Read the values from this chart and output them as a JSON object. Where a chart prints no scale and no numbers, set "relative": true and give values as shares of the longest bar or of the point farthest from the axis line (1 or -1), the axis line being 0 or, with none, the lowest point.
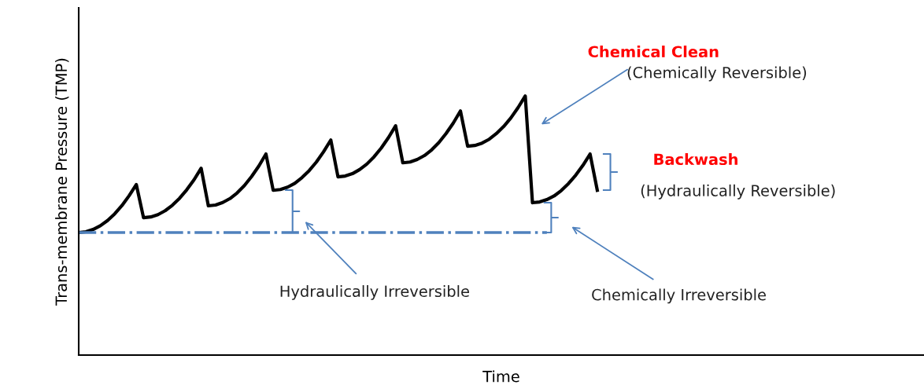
{
  "chart_data": {
    "type": "line",
    "relative": true,
    "xlabel": "Time",
    "ylabel": "Trans-membrane Pressure (TMP)",
    "categories": [
      null,
      null,
      null,
      null,
      null,
      null,
      null,
      null,
      null,
      null,
      null,
      null,
      null,
      null,
      null,
      null,
      null,
      null,
      null,
      null,
      null,
      null,
      null,
      null,
      null,
      null,
      null,
      null,
      null,
      null,
      null,
      null,
      null,
      null,
      null,
      null,
      null,
      null,
      null,
      null,
      null,
      null,
      null,
      null,
      null,
      null,
      null,
      null,
      null,
      null,
      null,
      null,
      null,
      null,
      null,
      null,
      null,
      null,
      null,
      null,
      null,
      null,
      null,
      null,
      null,
      null,
      null,
      null,
      null,
      null,
      null,
      null,
      null
    ],
    "series": [
      {
        "color": "#000000",
        "line_style": "solid",
        "values": [
          0.473,
          0.476,
          0.485,
          0.499,
          0.519,
          0.545,
          0.577,
          0.615,
          0.658,
          0.53,
          0.533,
          0.542,
          0.557,
          0.578,
          0.605,
          0.638,
          0.676,
          0.721,
          0.576,
          0.579,
          0.589,
          0.604,
          0.626,
          0.654,
          0.689,
          0.729,
          0.776,
          0.636,
          0.639,
          0.648,
          0.663,
          0.685,
          0.712,
          0.745,
          0.785,
          0.83,
          0.688,
          0.691,
          0.7,
          0.716,
          0.737,
          0.765,
          0.799,
          0.839,
          0.885,
          0.742,
          0.745,
          0.755,
          0.77,
          0.792,
          0.82,
          0.855,
          0.895,
          0.942,
          0.806,
          0.809,
          0.818,
          0.833,
          0.855,
          0.882,
          0.915,
          0.955,
          1.0,
          0.588,
          0.591,
          0.6,
          0.614,
          0.635,
          0.662,
          0.694,
          0.732,
          0.776,
          0.636
        ]
      },
      {
        "color": "#4f81bd",
        "line_style": "dashdot",
        "values": [
          0.473,
          0.473,
          0.473,
          0.473,
          0.473,
          0.473,
          0.473,
          0.473,
          0.473,
          0.473,
          0.473,
          0.473,
          0.473,
          0.473,
          0.473,
          0.473,
          0.473,
          0.473,
          0.473,
          0.473,
          0.473,
          0.473,
          0.473,
          0.473,
          0.473,
          0.473,
          0.473,
          0.473,
          0.473,
          0.473,
          0.473,
          0.473,
          0.473,
          0.473,
          0.473,
          0.473,
          0.473,
          0.473,
          0.473,
          0.473,
          0.473,
          0.473,
          0.473,
          0.473,
          0.473,
          0.473,
          0.473,
          0.473,
          0.473,
          0.473,
          0.473,
          0.473,
          0.473,
          0.473,
          0.473,
          0.473,
          0.473,
          0.473,
          0.473,
          0.473,
          0.473,
          0.473,
          0.473,
          0.473,
          0.473,
          0.473,
          null,
          null,
          null,
          null,
          null,
          null,
          null
        ]
      }
    ],
    "annotations": [
      "Chemical Clean",
      "(Chemically Reversible)",
      "Backwash",
      "(Hydraulically Reversible)",
      "Hydraulically Irreversible",
      "Chemically Irreversible"
    ]
  }
}
